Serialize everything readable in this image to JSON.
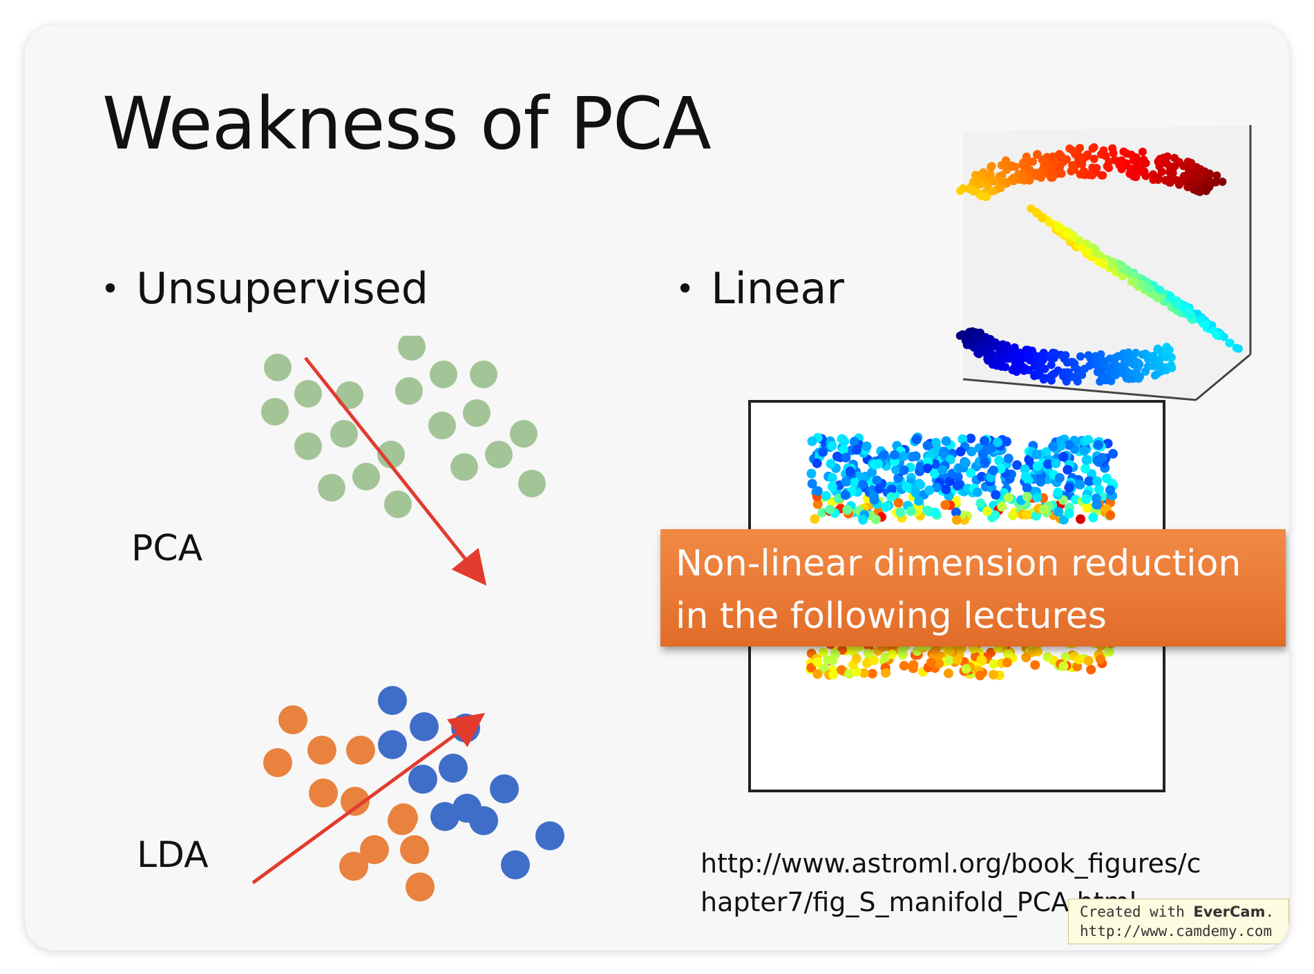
{
  "slide": {
    "title": "Weakness of PCA",
    "bullets": [
      {
        "marker": "•",
        "text": "Unsupervised"
      },
      {
        "marker": "•",
        "text": "Linear"
      }
    ],
    "labels": {
      "pca": "PCA",
      "lda": "LDA"
    },
    "callout": {
      "line1": "Non-linear dimension reduction",
      "line2": "in the following lectures"
    },
    "url": {
      "line1": "http://www.astroml.org/book_figures/c",
      "line2": "hapter7/fig_S_manifold_PCA.html"
    },
    "watermark": {
      "prefix": "Created with ",
      "brand": "EverCam",
      "suffix": ".",
      "url": "http://www.camdemy.com"
    }
  },
  "colors": {
    "green_points": "#a3c497",
    "orange_points": "#e8823e",
    "blue_points": "#3f6ec8",
    "arrow": "#e23b2e",
    "callout": "#ea7a35"
  }
}
